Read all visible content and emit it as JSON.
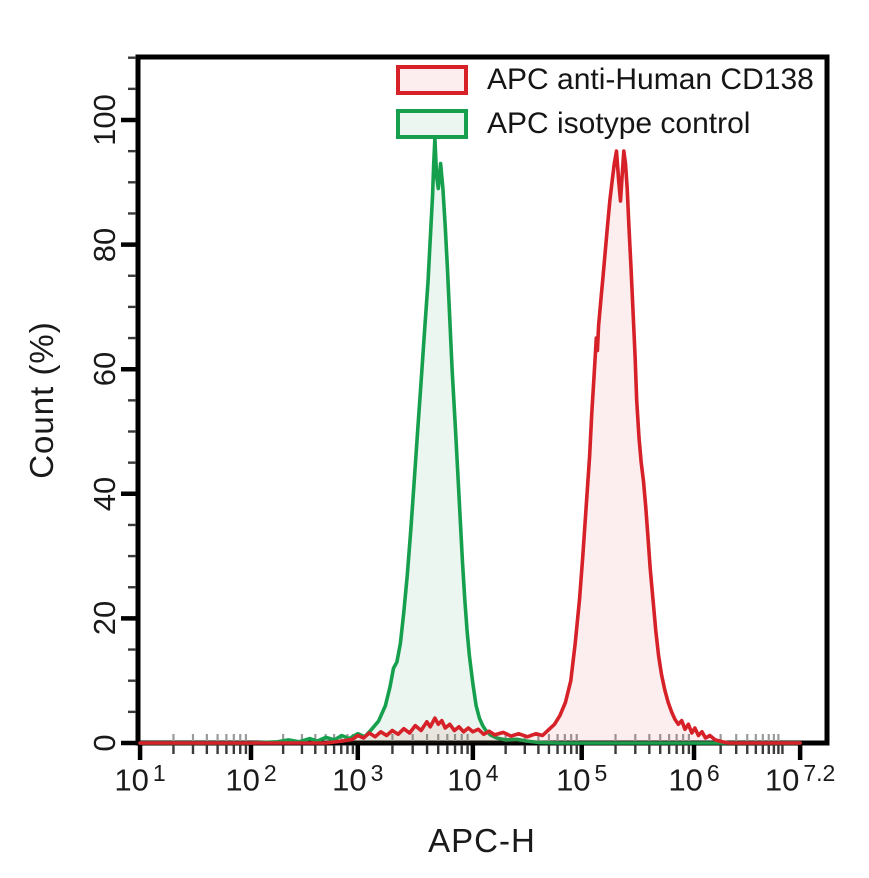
{
  "chart_data": {
    "type": "area",
    "subtype": "flow-cytometry-histogram-overlay",
    "title": "",
    "xlabel": "APC-H",
    "ylabel": "Count  (%)",
    "x_scale": "log10",
    "grid": false,
    "legend_position": "top-right-inside",
    "x_axis": {
      "ticks": [
        {
          "base": "10",
          "exp": "1",
          "log": 1.0
        },
        {
          "base": "10",
          "exp": "2",
          "log": 2.0
        },
        {
          "base": "10",
          "exp": "3",
          "log": 3.0
        },
        {
          "base": "10",
          "exp": "4",
          "log": 4.0
        },
        {
          "base": "10",
          "exp": "5",
          "log": 5.0
        },
        {
          "base": "10",
          "exp": "6",
          "log": 6.0
        },
        {
          "base": "10",
          "exp": "7.2",
          "log": 7.2
        }
      ],
      "anchors": [
        {
          "log": 1.0,
          "frac": 0.003
        },
        {
          "log": 2.0,
          "frac": 0.164
        },
        {
          "log": 3.0,
          "frac": 0.319
        },
        {
          "log": 4.0,
          "frac": 0.486
        },
        {
          "log": 5.0,
          "frac": 0.644
        },
        {
          "log": 6.0,
          "frac": 0.807
        },
        {
          "log": 7.2,
          "frac": 0.961
        }
      ],
      "range_log": [
        1.0,
        7.2
      ]
    },
    "y_axis": {
      "ticks": [
        0,
        20,
        40,
        60,
        80,
        100
      ],
      "minor_step": 5,
      "ylim": [
        0,
        110
      ]
    },
    "series": [
      {
        "name": "APC anti-Human CD138",
        "color": "#d62128",
        "fill": "rgba(214,33,40,0.08)",
        "peak_log": 5.31,
        "peak_pct": 95,
        "points": [
          [
            1.0,
            0
          ],
          [
            2.7,
            0
          ],
          [
            2.85,
            0.3
          ],
          [
            2.95,
            0.6
          ],
          [
            3.0,
            1.2
          ],
          [
            3.05,
            0.8
          ],
          [
            3.1,
            1.6
          ],
          [
            3.15,
            1.0
          ],
          [
            3.2,
            1.8
          ],
          [
            3.25,
            1.2
          ],
          [
            3.3,
            2.0
          ],
          [
            3.35,
            1.4
          ],
          [
            3.4,
            2.3
          ],
          [
            3.45,
            1.6
          ],
          [
            3.5,
            2.8
          ],
          [
            3.55,
            2.0
          ],
          [
            3.6,
            3.4
          ],
          [
            3.63,
            2.6
          ],
          [
            3.67,
            4.0
          ],
          [
            3.7,
            3.0
          ],
          [
            3.73,
            3.6
          ],
          [
            3.76,
            2.4
          ],
          [
            3.8,
            3.0
          ],
          [
            3.84,
            2.0
          ],
          [
            3.88,
            2.6
          ],
          [
            3.92,
            1.8
          ],
          [
            3.96,
            2.4
          ],
          [
            4.0,
            1.8
          ],
          [
            4.05,
            2.2
          ],
          [
            4.1,
            1.4
          ],
          [
            4.15,
            1.9
          ],
          [
            4.2,
            1.3
          ],
          [
            4.28,
            1.7
          ],
          [
            4.35,
            1.1
          ],
          [
            4.42,
            1.5
          ],
          [
            4.5,
            1.0
          ],
          [
            4.58,
            1.5
          ],
          [
            4.64,
            1.2
          ],
          [
            4.7,
            2.2
          ],
          [
            4.75,
            3.0
          ],
          [
            4.8,
            4.4
          ],
          [
            4.85,
            6.5
          ],
          [
            4.9,
            10
          ],
          [
            4.94,
            16
          ],
          [
            4.98,
            23
          ],
          [
            5.01,
            30
          ],
          [
            5.04,
            38
          ],
          [
            5.07,
            46
          ],
          [
            5.09,
            53
          ],
          [
            5.11,
            59
          ],
          [
            5.13,
            65
          ],
          [
            5.14,
            63
          ],
          [
            5.15,
            67
          ],
          [
            5.17,
            71
          ],
          [
            5.19,
            75
          ],
          [
            5.21,
            79
          ],
          [
            5.23,
            83
          ],
          [
            5.25,
            87
          ],
          [
            5.27,
            90
          ],
          [
            5.29,
            93
          ],
          [
            5.31,
            95
          ],
          [
            5.33,
            90
          ],
          [
            5.345,
            87
          ],
          [
            5.36,
            91
          ],
          [
            5.375,
            95
          ],
          [
            5.39,
            93
          ],
          [
            5.405,
            89
          ],
          [
            5.42,
            83
          ],
          [
            5.44,
            76
          ],
          [
            5.46,
            68
          ],
          [
            5.475,
            62
          ],
          [
            5.49,
            55
          ],
          [
            5.51,
            49
          ],
          [
            5.53,
            45
          ],
          [
            5.55,
            42
          ],
          [
            5.57,
            38
          ],
          [
            5.59,
            33
          ],
          [
            5.61,
            28
          ],
          [
            5.635,
            23
          ],
          [
            5.66,
            18
          ],
          [
            5.685,
            14
          ],
          [
            5.71,
            11
          ],
          [
            5.74,
            8.5
          ],
          [
            5.77,
            6.5
          ],
          [
            5.8,
            5
          ],
          [
            5.83,
            3.8
          ],
          [
            5.86,
            3
          ],
          [
            5.89,
            3.6
          ],
          [
            5.92,
            2.2
          ],
          [
            5.95,
            3.0
          ],
          [
            5.98,
            1.6
          ],
          [
            6.01,
            2.4
          ],
          [
            6.05,
            1.2
          ],
          [
            6.09,
            1.8
          ],
          [
            6.13,
            0.8
          ],
          [
            6.18,
            1.2
          ],
          [
            6.24,
            0.5
          ],
          [
            6.32,
            0.2
          ],
          [
            6.4,
            0
          ],
          [
            7.2,
            0
          ]
        ]
      },
      {
        "name": "APC isotype control",
        "color": "#16a04e",
        "fill": "rgba(22,160,78,0.09)",
        "peak_log": 3.67,
        "peak_pct": 97,
        "points": [
          [
            1.0,
            0
          ],
          [
            2.0,
            0
          ],
          [
            2.25,
            0.2
          ],
          [
            2.35,
            0.5
          ],
          [
            2.45,
            0.2
          ],
          [
            2.55,
            0.7
          ],
          [
            2.62,
            0.3
          ],
          [
            2.7,
            0.9
          ],
          [
            2.78,
            0.5
          ],
          [
            2.85,
            1.2
          ],
          [
            2.92,
            0.7
          ],
          [
            3.0,
            1.5
          ],
          [
            3.06,
            1.0
          ],
          [
            3.12,
            2.2
          ],
          [
            3.18,
            3.5
          ],
          [
            3.24,
            6
          ],
          [
            3.28,
            9
          ],
          [
            3.31,
            12
          ],
          [
            3.34,
            13
          ],
          [
            3.37,
            16
          ],
          [
            3.4,
            21
          ],
          [
            3.43,
            27
          ],
          [
            3.46,
            34
          ],
          [
            3.49,
            42
          ],
          [
            3.52,
            50
          ],
          [
            3.55,
            58
          ],
          [
            3.58,
            66
          ],
          [
            3.61,
            74
          ],
          [
            3.63,
            81
          ],
          [
            3.65,
            88
          ],
          [
            3.66,
            93
          ],
          [
            3.67,
            97
          ],
          [
            3.685,
            91
          ],
          [
            3.7,
            89
          ],
          [
            3.72,
            93
          ],
          [
            3.74,
            89
          ],
          [
            3.76,
            83
          ],
          [
            3.78,
            76
          ],
          [
            3.8,
            68
          ],
          [
            3.82,
            60
          ],
          [
            3.85,
            50
          ],
          [
            3.87,
            43
          ],
          [
            3.89,
            36
          ],
          [
            3.91,
            29
          ],
          [
            3.93,
            23
          ],
          [
            3.95,
            18
          ],
          [
            3.97,
            14
          ],
          [
            4.0,
            9.5
          ],
          [
            4.03,
            6
          ],
          [
            4.06,
            4
          ],
          [
            4.09,
            2.8
          ],
          [
            4.12,
            2.0
          ],
          [
            4.16,
            1.3
          ],
          [
            4.22,
            0.8
          ],
          [
            4.3,
            0.5
          ],
          [
            4.4,
            0.6
          ],
          [
            4.5,
            0.3
          ],
          [
            4.6,
            0.1
          ],
          [
            4.8,
            0
          ],
          [
            7.2,
            0
          ]
        ]
      }
    ]
  }
}
